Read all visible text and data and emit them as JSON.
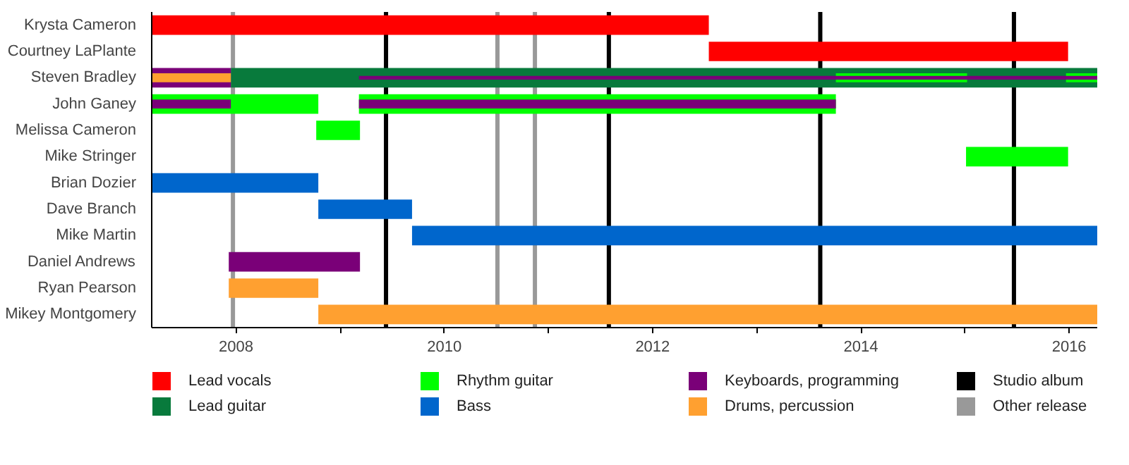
{
  "chart_data": {
    "type": "bar",
    "orientation": "horizontal",
    "categories": [
      "Krysta Cameron",
      "Courtney LaPlante",
      "Steven Bradley",
      "John Ganey",
      "Melissa Cameron",
      "Mike Stringer",
      "Brian Dozier",
      "Dave Branch",
      "Mike Martin",
      "Daniel Andrews",
      "Ryan Pearson",
      "Mikey Montgomery"
    ],
    "series": [
      {
        "name": "Lead vocals",
        "color": "#ff0000",
        "base": [
          2007.19,
          2012.54,
          null,
          null,
          null,
          null,
          null,
          null,
          null,
          null,
          null,
          null
        ],
        "values": [
          5.35,
          3.45,
          null,
          null,
          null,
          null,
          null,
          null,
          null,
          null,
          null,
          null
        ]
      },
      {
        "name": "Lead guitar",
        "color": "#087a3c",
        "base": [
          null,
          null,
          2007.95,
          null,
          null,
          null,
          null,
          null,
          null,
          null,
          null,
          null
        ],
        "values": [
          null,
          null,
          8.32,
          null,
          null,
          null,
          null,
          null,
          null,
          null,
          null,
          null
        ]
      },
      {
        "name": "Rhythm guitar",
        "color": "#00ff00",
        "base": [
          null,
          null,
          2013.76,
          2007.19,
          2008.77,
          2015.01,
          null,
          null,
          null,
          null,
          null,
          null
        ],
        "values": [
          null,
          null,
          1.26,
          1.6,
          0.42,
          0.98,
          null,
          null,
          null,
          null,
          null,
          null
        ]
      },
      {
        "color": "#00ff00",
        "base": [
          null,
          null,
          2015.97,
          2009.18,
          null,
          null,
          null,
          null,
          null,
          null,
          null,
          null
        ],
        "values": [
          null,
          null,
          0.3,
          4.58,
          null,
          null,
          null,
          null,
          null,
          null,
          null,
          null
        ]
      },
      {
        "name": "Bass",
        "color": "#0066cc",
        "base": [
          null,
          null,
          null,
          null,
          null,
          null,
          2007.19,
          2008.79,
          2009.69,
          null,
          null,
          null
        ],
        "values": [
          null,
          null,
          null,
          null,
          null,
          null,
          1.6,
          0.9,
          6.58,
          null,
          null,
          null
        ]
      },
      {
        "name": "Keyboards, programming",
        "color": "#7a0078",
        "base": [
          null,
          null,
          2007.19,
          2007.19,
          null,
          null,
          null,
          null,
          null,
          2007.93,
          null,
          null
        ],
        "values": [
          null,
          null,
          0.76,
          0.76,
          null,
          null,
          null,
          null,
          null,
          1.26,
          null,
          null
        ]
      },
      {
        "color": "#7a0078",
        "base": [
          null,
          null,
          2009.18,
          2009.18,
          null,
          null,
          null,
          null,
          null,
          null,
          null,
          null
        ],
        "values": [
          null,
          null,
          7.09,
          4.58,
          null,
          null,
          null,
          null,
          null,
          null,
          null,
          null
        ]
      },
      {
        "name": "Drums, percussion",
        "color": "#ffa030",
        "base": [
          null,
          null,
          2007.19,
          null,
          null,
          null,
          null,
          null,
          null,
          null,
          2007.93,
          2008.79
        ],
        "values": [
          null,
          null,
          0.76,
          null,
          null,
          null,
          null,
          null,
          null,
          null,
          0.86,
          7.48
        ]
      }
    ],
    "ref_lines": [
      {
        "axis": "x",
        "value": 2009.44,
        "label": "Studio album",
        "color": "#000000"
      },
      {
        "axis": "x",
        "value": 2011.58,
        "color": "#000000"
      },
      {
        "axis": "x",
        "value": 2013.61,
        "color": "#000000"
      },
      {
        "axis": "x",
        "value": 2015.47,
        "color": "#000000"
      },
      {
        "axis": "x",
        "value": 2007.97,
        "label": "Other release",
        "color": "#999999"
      },
      {
        "axis": "x",
        "value": 2010.51,
        "color": "#999999"
      },
      {
        "axis": "x",
        "value": 2010.87,
        "color": "#999999"
      }
    ],
    "xlim": [
      2007.19,
      2016.27
    ],
    "xticks": [
      2008,
      {
        "value": 2009,
        "label": null
      },
      2010,
      {
        "value": 2011,
        "label": null
      },
      2012,
      {
        "value": 2013,
        "label": null
      },
      2014,
      {
        "value": 2015,
        "label": null
      },
      2016
    ],
    "legend": "bottom",
    "grid": false
  }
}
